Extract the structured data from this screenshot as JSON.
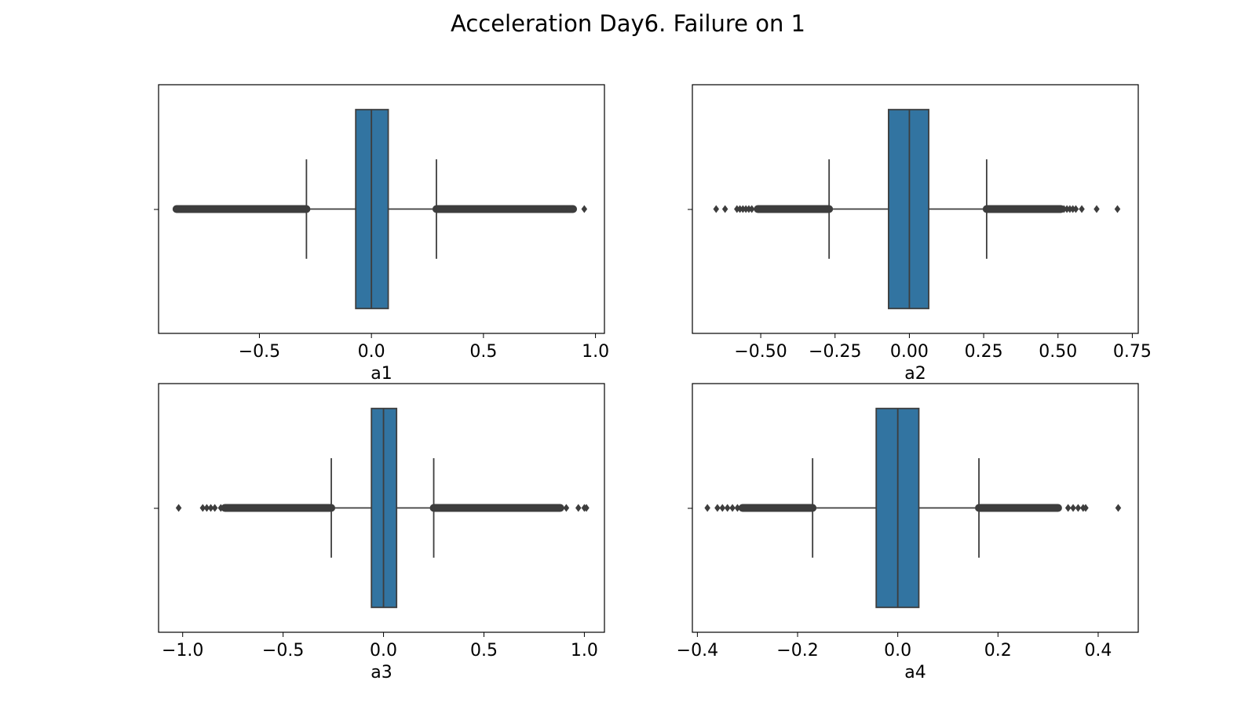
{
  "figure_title": "Acceleration Day6. Failure on 1",
  "colors": {
    "box_fill": "#3274a1",
    "line": "#3d3d3d",
    "axis": "#000000"
  },
  "chart_data": [
    {
      "type": "box",
      "orientation": "horizontal",
      "xlabel": "a1",
      "xlim": [
        -0.95,
        1.04
      ],
      "xticks": [
        -0.5,
        0.0,
        0.5,
        1.0
      ],
      "xtick_labels": [
        "−0.5",
        "0.0",
        "0.5",
        "1.0"
      ],
      "whisker_low": -0.29,
      "q1": -0.07,
      "median": 0.0,
      "q3": 0.075,
      "whisker_high": 0.29,
      "outliers_low_range": [
        -0.87,
        -0.29
      ],
      "outliers_high_range": [
        0.29,
        0.9
      ],
      "outliers": [
        -0.87,
        -0.85,
        -0.84,
        -0.83,
        -0.82,
        0.84,
        0.86,
        0.88,
        0.9,
        0.95
      ]
    },
    {
      "type": "box",
      "orientation": "horizontal",
      "xlabel": "a2",
      "xlim": [
        -0.73,
        0.77
      ],
      "xticks": [
        -0.5,
        -0.25,
        0.0,
        0.25,
        0.5,
        0.75
      ],
      "xtick_labels": [
        "−0.50",
        "−0.25",
        "0.00",
        "0.25",
        "0.50",
        "0.75"
      ],
      "whisker_low": -0.27,
      "q1": -0.07,
      "median": 0.0,
      "q3": 0.065,
      "whisker_high": 0.26,
      "outliers_low_range": [
        -0.51,
        -0.27
      ],
      "outliers_high_range": [
        0.26,
        0.51
      ],
      "outliers": [
        -0.65,
        -0.62,
        -0.58,
        -0.57,
        -0.56,
        -0.55,
        -0.54,
        -0.53,
        0.52,
        0.53,
        0.54,
        0.55,
        0.56,
        0.58,
        0.63,
        0.7
      ]
    },
    {
      "type": "box",
      "orientation": "horizontal",
      "xlabel": "a3",
      "xlim": [
        -1.12,
        1.1
      ],
      "xticks": [
        -1.0,
        -0.5,
        0.0,
        0.5,
        1.0
      ],
      "xtick_labels": [
        "−1.0",
        "−0.5",
        "0.0",
        "0.5",
        "1.0"
      ],
      "whisker_low": -0.26,
      "q1": -0.06,
      "median": 0.0,
      "q3": 0.065,
      "whisker_high": 0.25,
      "outliers_low_range": [
        -0.79,
        -0.26
      ],
      "outliers_high_range": [
        0.25,
        0.88
      ],
      "outliers": [
        -1.02,
        -0.9,
        -0.88,
        -0.86,
        -0.84,
        -0.81,
        0.91,
        0.97,
        1.0,
        1.01
      ]
    },
    {
      "type": "box",
      "orientation": "horizontal",
      "xlabel": "a4",
      "xlim": [
        -0.41,
        0.48
      ],
      "xticks": [
        -0.4,
        -0.2,
        0.0,
        0.2,
        0.4
      ],
      "xtick_labels": [
        "−0.4",
        "−0.2",
        "0.0",
        "0.2",
        "0.4"
      ],
      "whisker_low": -0.17,
      "q1": -0.043,
      "median": 0.0,
      "q3": 0.042,
      "whisker_high": 0.162,
      "outliers_low_range": [
        -0.31,
        -0.17
      ],
      "outliers_high_range": [
        0.162,
        0.32
      ],
      "outliers": [
        -0.38,
        -0.36,
        -0.35,
        -0.34,
        -0.33,
        -0.32,
        0.34,
        0.35,
        0.36,
        0.37,
        0.375,
        0.44
      ]
    }
  ]
}
